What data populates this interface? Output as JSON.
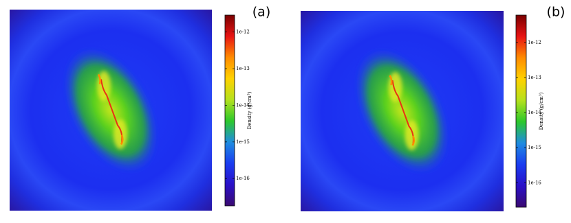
{
  "chart_data": [
    {
      "type": "heatmap",
      "panel_label": "(a)",
      "colorbar": {
        "label": "Density (g/cm³)",
        "log": true,
        "lim": [
          1.8e-17,
          2.9e-12
        ],
        "ticks": [
          {
            "value": 1e-12,
            "label": "1e-12"
          },
          {
            "value": 1e-13,
            "label": "1e-13"
          },
          {
            "value": 1e-14,
            "label": "1e-14"
          },
          {
            "value": 1e-15,
            "label": "1e-15"
          },
          {
            "value": 1e-16,
            "label": "1e-16"
          }
        ],
        "colors": [
          "#3a0a70",
          "#2a10c8",
          "#1a3cf0",
          "#1f8ce0",
          "#2cc82c",
          "#b4e11e",
          "#ffd200",
          "#ff8c00",
          "#e81414",
          "#7a0000"
        ]
      }
    },
    {
      "type": "heatmap",
      "panel_label": "(b)",
      "colorbar": {
        "label": "Density (g/cm³)",
        "log": true,
        "lim": [
          2e-17,
          6e-12
        ],
        "ticks": [
          {
            "value": 1e-12,
            "label": "1e-12"
          },
          {
            "value": 1e-13,
            "label": "1e-13"
          },
          {
            "value": 1e-14,
            "label": "1e-14"
          },
          {
            "value": 1e-15,
            "label": "1e-15"
          },
          {
            "value": 1e-16,
            "label": "1e-16"
          }
        ],
        "colors": [
          "#3a0a70",
          "#2a10c8",
          "#1a3cf0",
          "#1f8ce0",
          "#2cc82c",
          "#b4e11e",
          "#ffd200",
          "#ff8c00",
          "#e81414",
          "#7a0000"
        ]
      }
    }
  ]
}
